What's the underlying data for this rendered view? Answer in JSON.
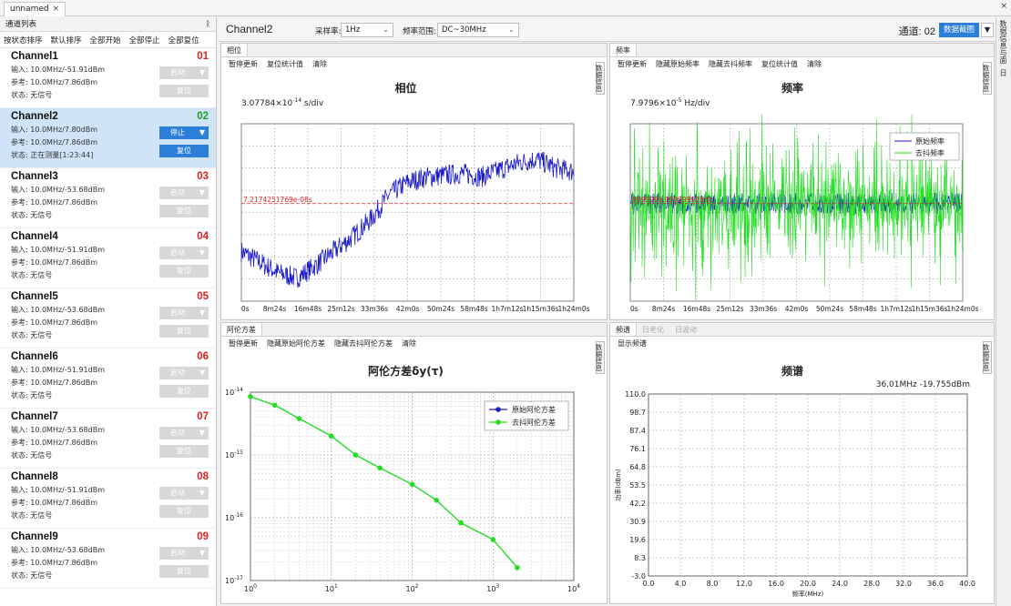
{
  "window": {
    "tab_label": "unnamed",
    "close_glyph": "×"
  },
  "left_panel": {
    "title": "通道列表",
    "pin_glyph": "ᚱ",
    "sort_buttons": [
      "按状态排序",
      "默认排序",
      "全部开始",
      "全部停止",
      "全部复位"
    ],
    "channels": [
      {
        "name": "Channel1",
        "num": "01",
        "input": "输入: 10.0MHz/-51.91dBm",
        "ref": "参考: 10.0MHz/7.86dBm",
        "status": "状态: 无信号",
        "start_label": "启动",
        "reset_label": "复位",
        "active": false
      },
      {
        "name": "Channel2",
        "num": "02",
        "input": "输入: 10.0MHz/7.80dBm",
        "ref": "参考: 10.0MHz/7.86dBm",
        "status": "状态: 正在测量[1:23:44]",
        "start_label": "停止",
        "reset_label": "复位",
        "active": true
      },
      {
        "name": "Channel3",
        "num": "03",
        "input": "输入: 10.0MHz/-53.68dBm",
        "ref": "参考: 10.0MHz/7.86dBm",
        "status": "状态: 无信号",
        "start_label": "启动",
        "reset_label": "复位",
        "active": false
      },
      {
        "name": "Channel4",
        "num": "04",
        "input": "输入: 10.0MHz/-51.91dBm",
        "ref": "参考: 10.0MHz/7.86dBm",
        "status": "状态: 无信号",
        "start_label": "启动",
        "reset_label": "复位",
        "active": false
      },
      {
        "name": "Channel5",
        "num": "05",
        "input": "输入: 10.0MHz/-53.68dBm",
        "ref": "参考: 10.0MHz/7.86dBm",
        "status": "状态: 无信号",
        "start_label": "启动",
        "reset_label": "复位",
        "active": false
      },
      {
        "name": "Channel6",
        "num": "06",
        "input": "输入: 10.0MHz/-51.91dBm",
        "ref": "参考: 10.0MHz/7.86dBm",
        "status": "状态: 无信号",
        "start_label": "启动",
        "reset_label": "复位",
        "active": false
      },
      {
        "name": "Channel7",
        "num": "07",
        "input": "输入: 10.0MHz/-53.68dBm",
        "ref": "参考: 10.0MHz/7.86dBm",
        "status": "状态: 无信号",
        "start_label": "启动",
        "reset_label": "复位",
        "active": false
      },
      {
        "name": "Channel8",
        "num": "08",
        "input": "输入: 10.0MHz/-51.91dBm",
        "ref": "参考: 10.0MHz/7.86dBm",
        "status": "状态: 无信号",
        "start_label": "启动",
        "reset_label": "复位",
        "active": false
      },
      {
        "name": "Channel9",
        "num": "09",
        "input": "输入: 10.0MHz/-53.68dBm",
        "ref": "参考: 10.0MHz/7.86dBm",
        "status": "状态: 无信号",
        "start_label": "启动",
        "reset_label": "复位",
        "active": false
      }
    ]
  },
  "toolbar": {
    "channel_name": "Channel2",
    "rate_label": "采样率:",
    "rate_value": "1Hz",
    "range_label": "频率范围:",
    "range_value": "DC~30MHz",
    "channel_select": "通道: 02",
    "screenshot_label": "数据截图",
    "more_glyph": "▼"
  },
  "right_side_tabs": [
    "数据信息与面",
    "日"
  ],
  "panels": {
    "phase": {
      "tab": "相位",
      "menu": [
        "暂停更新",
        "复位统计值",
        "清除"
      ],
      "title": "相位",
      "subtitle_mantissa": "3.07784×10",
      "subtitle_exp": "-14",
      "subtitle_unit": " s/div",
      "mean_label": "7.2174251769e-08s",
      "side_label": "数据信息",
      "x_ticks": [
        "0s",
        "8m24s",
        "16m48s",
        "25m12s",
        "33m36s",
        "42m0s",
        "50m24s",
        "58m48s",
        "1h7m12s",
        "1h15m36s",
        "1h24m0s"
      ]
    },
    "frequency": {
      "tab": "频率",
      "menu": [
        "暂停更新",
        "隐藏原始频率",
        "隐藏去抖频率",
        "复位统计值",
        "清除"
      ],
      "title": "频率",
      "subtitle_mantissa": "7.9796×10",
      "subtitle_exp": "-5",
      "subtitle_unit": " Hz/div",
      "mean_label": "9999999.999999925Hz",
      "side_label": "数据信息",
      "legend": [
        "原始频率",
        "去抖频率"
      ],
      "x_ticks": [
        "0s",
        "8m24s",
        "16m48s",
        "25m12s",
        "33m36s",
        "42m0s",
        "50m24s",
        "58m48s",
        "1h7m12s",
        "1h15m36s",
        "1h24m0s"
      ]
    },
    "allan": {
      "tab": "阿伦方差",
      "menu": [
        "暂停更新",
        "隐藏原始阿伦方差",
        "隐藏去抖阿伦方差",
        "清除"
      ],
      "title": "阿伦方差δy(τ)",
      "side_label": "数据信息",
      "legend": [
        "原始阿伦方差",
        "去抖阿伦方差"
      ]
    },
    "spectrum": {
      "tabs": [
        "频谱",
        "日老化",
        "日波动"
      ],
      "menu": [
        "显示频谱"
      ],
      "title": "频谱",
      "side_label": "数据信息",
      "marker": "36.01MHz  -19.755dBm",
      "ylabel": "功率(dBm)",
      "xlabel": "频率(MHz)"
    }
  },
  "colors": {
    "accent": "#2b7fd8",
    "raw_series": "#1a1acc",
    "dejitter_series": "#22dd22",
    "mean_line": "#dd2222",
    "active_row": "#cfe5f7"
  },
  "chart_data": [
    {
      "type": "line",
      "title": "相位",
      "series": [
        {
          "name": "phase",
          "description": "noisy rising phase trace"
        }
      ],
      "x": [
        "0s",
        "8m24s",
        "16m48s",
        "25m12s",
        "33m36s",
        "42m0s",
        "50m24s",
        "58m48s",
        "1h7m12s",
        "1h15m36s",
        "1h24m0s"
      ],
      "profile": [
        0.28,
        0.22,
        0.16,
        0.13,
        0.2,
        0.28,
        0.36,
        0.46,
        0.6,
        0.67,
        0.7,
        0.71,
        0.72,
        0.7,
        0.74,
        0.78,
        0.8,
        0.75,
        0.73
      ],
      "grid": true
    },
    {
      "type": "line",
      "title": "频率",
      "series": [
        {
          "name": "原始频率"
        },
        {
          "name": "去抖频率"
        }
      ],
      "x": [
        "0s",
        "8m24s",
        "16m48s",
        "25m12s",
        "33m36s",
        "42m0s",
        "50m24s",
        "58m48s",
        "1h7m12s",
        "1h15m36s",
        "1h24m0s"
      ],
      "grid": true
    },
    {
      "type": "line",
      "title": "阿伦方差δy(τ)",
      "x_log": true,
      "y_log": true,
      "xlim": [
        1,
        10000
      ],
      "ylim": [
        1e-17,
        1e-14
      ],
      "x_ticks": [
        "10^0",
        "10^1",
        "10^2",
        "10^3",
        "10^4"
      ],
      "y_ticks": [
        "10^-14",
        "10^-15",
        "10^-16",
        "10^-17"
      ],
      "series": [
        {
          "name": "原始阿伦方差",
          "x": [
            1,
            2,
            4,
            10,
            20,
            40,
            100,
            200,
            400,
            1000,
            2000
          ],
          "y": [
            8.5e-15,
            6.2e-15,
            3.8e-15,
            2e-15,
            1e-15,
            6.2e-16,
            3.4e-16,
            1.9e-16,
            8.3e-17,
            4.5e-17,
            1.6e-17
          ]
        },
        {
          "name": "去抖阿伦方差",
          "x": [
            1,
            2,
            4,
            10,
            20,
            40,
            100,
            200,
            400,
            1000,
            2000
          ],
          "y": [
            8.5e-15,
            6.2e-15,
            3.8e-15,
            2e-15,
            1e-15,
            6.2e-16,
            3.4e-16,
            1.9e-16,
            8.3e-17,
            4.5e-17,
            1.6e-17
          ]
        }
      ],
      "grid": true
    },
    {
      "type": "line",
      "title": "频谱",
      "xlabel": "频率(MHz)",
      "ylabel": "功率(dBm)",
      "xlim": [
        0,
        40
      ],
      "ylim": [
        -3,
        110
      ],
      "x_ticks": [
        "0.0",
        "4.0",
        "8.0",
        "12.0",
        "16.0",
        "20.0",
        "24.0",
        "28.0",
        "32.0",
        "36.0",
        "40.0"
      ],
      "y_ticks": [
        "110.0",
        "98.7",
        "87.4",
        "76.1",
        "64.8",
        "53.5",
        "42.2",
        "30.9",
        "19.6",
        "8.3",
        "-3.0"
      ],
      "series": [],
      "grid": true
    }
  ]
}
